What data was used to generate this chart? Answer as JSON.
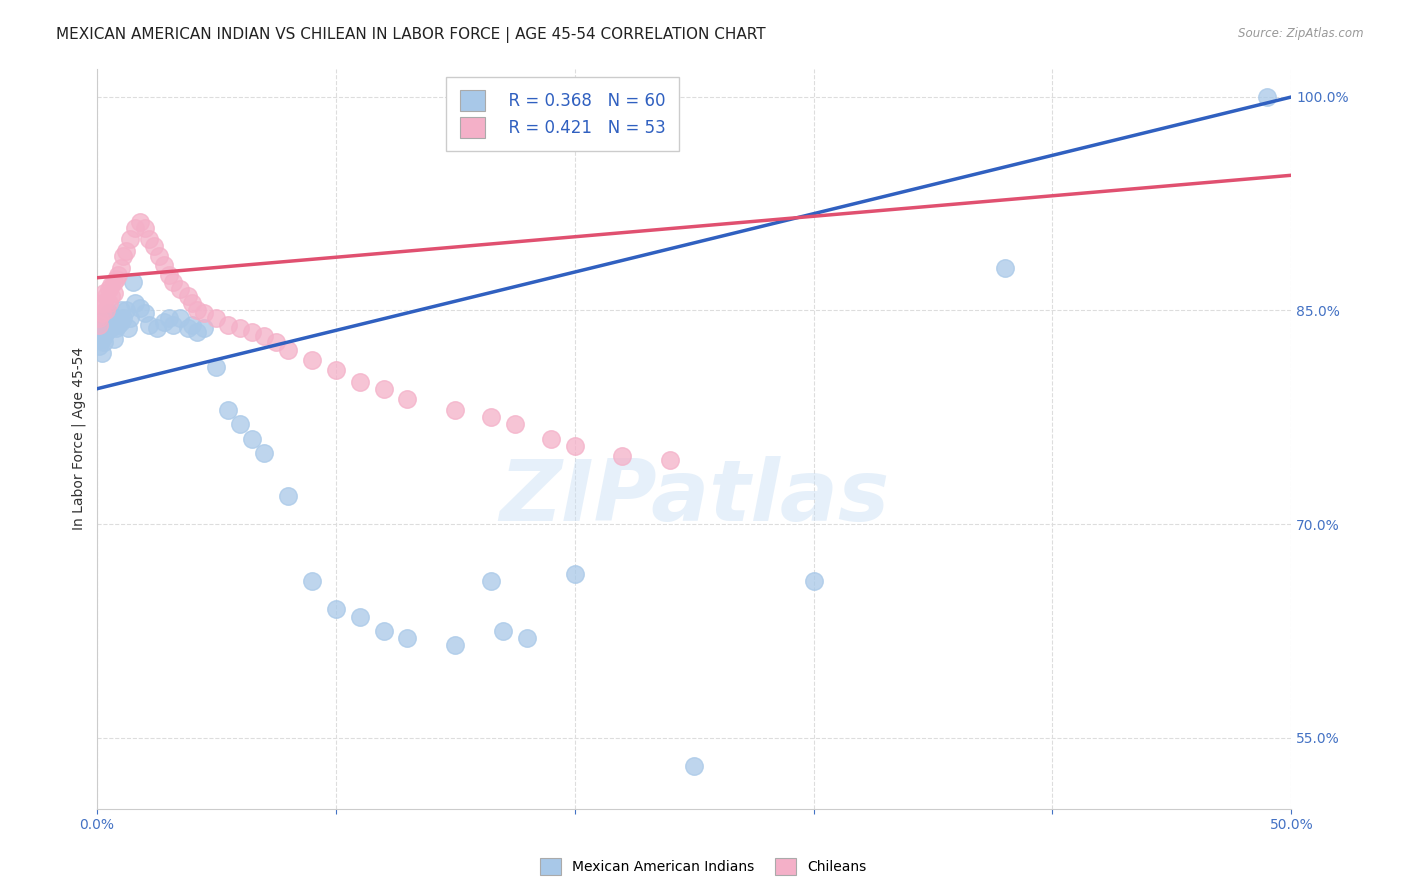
{
  "title": "MEXICAN AMERICAN INDIAN VS CHILEAN IN LABOR FORCE | AGE 45-54 CORRELATION CHART",
  "source": "Source: ZipAtlas.com",
  "ylabel": "In Labor Force | Age 45-54",
  "xlim": [
    0.0,
    0.5
  ],
  "ylim": [
    0.5,
    1.02
  ],
  "blue_R": 0.368,
  "blue_N": 60,
  "pink_R": 0.421,
  "pink_N": 53,
  "blue_color": "#a8c8e8",
  "pink_color": "#f4b0c8",
  "blue_line_color": "#3060c0",
  "pink_line_color": "#e05070",
  "legend_label_blue": "Mexican American Indians",
  "legend_label_pink": "Chileans",
  "blue_line_x0": 0.0,
  "blue_line_y0": 0.795,
  "blue_line_x1": 0.5,
  "blue_line_y1": 1.0,
  "pink_line_x0": 0.0,
  "pink_line_y0": 0.873,
  "pink_line_x1": 0.5,
  "pink_line_y1": 0.945,
  "ytick_positions": [
    0.55,
    0.7,
    0.85,
    1.0
  ],
  "ytick_labels": [
    "55.0%",
    "70.0%",
    "85.0%",
    "100.0%"
  ],
  "xtick_positions": [
    0.0,
    0.1,
    0.2,
    0.3,
    0.4,
    0.5
  ],
  "xtick_show": [
    0.0,
    0.5
  ],
  "watermark_text": "ZIPatlas",
  "background_color": "#ffffff",
  "grid_color": "#dddddd",
  "tick_color": "#4472c4",
  "title_fontsize": 11,
  "axis_label_fontsize": 10,
  "tick_fontsize": 10,
  "legend_fontsize": 12,
  "blue_points_x": [
    0.001,
    0.001,
    0.001,
    0.002,
    0.002,
    0.002,
    0.003,
    0.003,
    0.003,
    0.004,
    0.004,
    0.005,
    0.005,
    0.006,
    0.006,
    0.007,
    0.007,
    0.008,
    0.008,
    0.009,
    0.01,
    0.01,
    0.011,
    0.012,
    0.013,
    0.014,
    0.015,
    0.016,
    0.018,
    0.02,
    0.022,
    0.025,
    0.028,
    0.03,
    0.032,
    0.035,
    0.038,
    0.04,
    0.042,
    0.045,
    0.05,
    0.055,
    0.06,
    0.065,
    0.07,
    0.08,
    0.09,
    0.1,
    0.11,
    0.12,
    0.13,
    0.15,
    0.165,
    0.17,
    0.18,
    0.2,
    0.25,
    0.3,
    0.38,
    0.49
  ],
  "blue_points_y": [
    0.84,
    0.835,
    0.825,
    0.843,
    0.83,
    0.82,
    0.838,
    0.832,
    0.828,
    0.842,
    0.835,
    0.848,
    0.84,
    0.845,
    0.838,
    0.842,
    0.83,
    0.845,
    0.838,
    0.84,
    0.85,
    0.842,
    0.845,
    0.85,
    0.838,
    0.845,
    0.87,
    0.855,
    0.852,
    0.848,
    0.84,
    0.838,
    0.842,
    0.845,
    0.84,
    0.845,
    0.838,
    0.84,
    0.835,
    0.838,
    0.81,
    0.78,
    0.77,
    0.76,
    0.75,
    0.72,
    0.66,
    0.64,
    0.635,
    0.625,
    0.62,
    0.615,
    0.66,
    0.625,
    0.62,
    0.665,
    0.53,
    0.66,
    0.88,
    1.0
  ],
  "pink_points_x": [
    0.001,
    0.001,
    0.002,
    0.002,
    0.003,
    0.003,
    0.004,
    0.004,
    0.005,
    0.005,
    0.006,
    0.006,
    0.007,
    0.007,
    0.008,
    0.009,
    0.01,
    0.011,
    0.012,
    0.014,
    0.016,
    0.018,
    0.02,
    0.022,
    0.024,
    0.026,
    0.028,
    0.03,
    0.032,
    0.035,
    0.038,
    0.04,
    0.042,
    0.045,
    0.05,
    0.055,
    0.06,
    0.065,
    0.07,
    0.075,
    0.08,
    0.09,
    0.1,
    0.11,
    0.12,
    0.13,
    0.15,
    0.165,
    0.175,
    0.19,
    0.2,
    0.22,
    0.24
  ],
  "pink_points_y": [
    0.84,
    0.845,
    0.848,
    0.855,
    0.855,
    0.862,
    0.85,
    0.86,
    0.855,
    0.865,
    0.86,
    0.868,
    0.862,
    0.87,
    0.872,
    0.875,
    0.88,
    0.888,
    0.892,
    0.9,
    0.908,
    0.912,
    0.908,
    0.9,
    0.895,
    0.888,
    0.882,
    0.875,
    0.87,
    0.865,
    0.86,
    0.855,
    0.85,
    0.848,
    0.845,
    0.84,
    0.838,
    0.835,
    0.832,
    0.828,
    0.822,
    0.815,
    0.808,
    0.8,
    0.795,
    0.788,
    0.78,
    0.775,
    0.77,
    0.76,
    0.755,
    0.748,
    0.745
  ]
}
